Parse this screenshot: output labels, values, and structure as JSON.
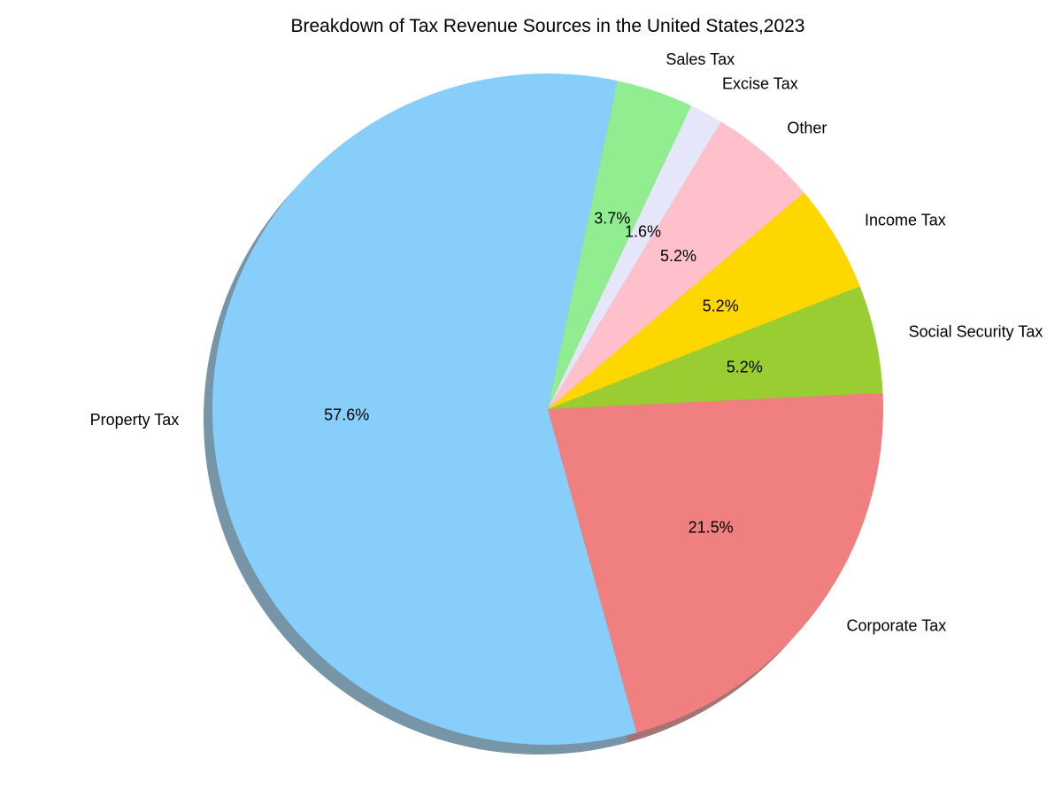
{
  "chart_data": {
    "type": "pie",
    "title": "Breakdown of Tax Revenue Sources in the United States,2023",
    "start_angle_deg": 78,
    "direction": "counterclockwise",
    "shadow": true,
    "slices": [
      {
        "label": "Property Tax",
        "value": 57.6,
        "pct_label": "57.6%",
        "color": "#87CEFA"
      },
      {
        "label": "Corporate Tax",
        "value": 21.5,
        "pct_label": "21.5%",
        "color": "#F08080"
      },
      {
        "label": "Social Security Tax",
        "value": 5.2,
        "pct_label": "5.2%",
        "color": "#9ACD32"
      },
      {
        "label": "Income Tax",
        "value": 5.2,
        "pct_label": "5.2%",
        "color": "#FFD700"
      },
      {
        "label": "Other",
        "value": 5.2,
        "pct_label": "5.2%",
        "color": "#FFC0CB"
      },
      {
        "label": "Excise Tax",
        "value": 1.6,
        "pct_label": "1.6%",
        "color": "#E6E6FA"
      },
      {
        "label": "Sales Tax",
        "value": 3.7,
        "pct_label": "3.7%",
        "color": "#90EE90"
      }
    ]
  }
}
